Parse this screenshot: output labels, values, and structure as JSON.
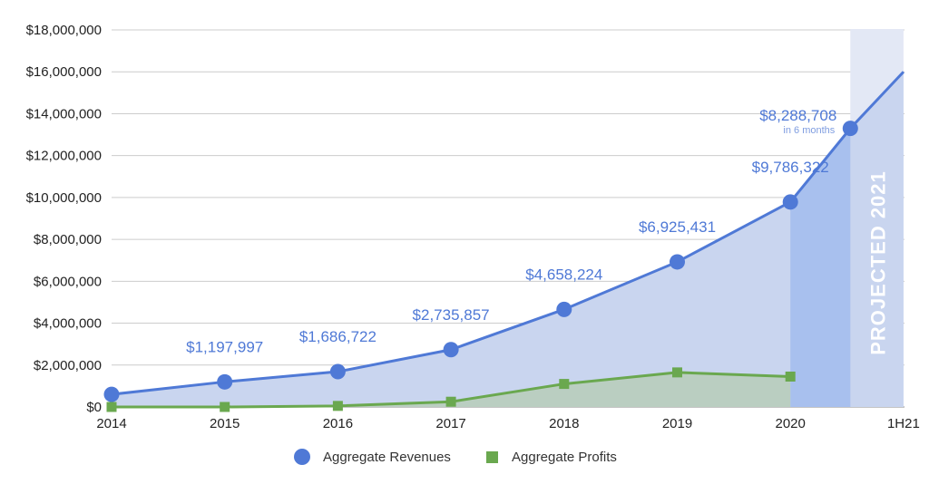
{
  "chart_data": {
    "type": "area",
    "x_categories": [
      "2014",
      "2015",
      "2016",
      "2017",
      "2018",
      "2019",
      "2020",
      "1H21"
    ],
    "ylim": [
      0,
      18000000
    ],
    "y_ticks": [
      "$0",
      "$2,000,000",
      "$4,000,000",
      "$6,000,000",
      "$8,000,000",
      "$10,000,000",
      "$12,000,000",
      "$14,000,000",
      "$16,000,000",
      "$18,000,000"
    ],
    "grid": true,
    "legend_position": "bottom",
    "series": [
      {
        "name": "Aggregate Revenues",
        "color": "#4f79d6",
        "marker": "circle",
        "x": [
          0,
          1,
          2,
          3,
          4,
          5,
          6,
          6.53
        ],
        "values": [
          600000,
          1197997,
          1686722,
          2735857,
          4658224,
          6925431,
          9786322,
          13300000
        ]
      },
      {
        "name": "Aggregate Profits",
        "color": "#6aa84f",
        "marker": "square",
        "x": [
          0,
          1,
          2,
          3,
          4,
          5,
          6
        ],
        "values": [
          0,
          0,
          50000,
          250000,
          1100000,
          1650000,
          1450000
        ]
      }
    ],
    "projection": {
      "label": "PROJECTED 2021",
      "x_start": 6.53,
      "x_end": 7.0,
      "y_end": 16000000
    },
    "half_year_band": {
      "x_start": 6.0,
      "x_end": 6.53
    },
    "data_labels": [
      {
        "text": "$1,197,997",
        "x": 1,
        "y": 1197997
      },
      {
        "text": "$1,686,722",
        "x": 2,
        "y": 1686722
      },
      {
        "text": "$2,735,857",
        "x": 3,
        "y": 2735857
      },
      {
        "text": "$4,658,224",
        "x": 4,
        "y": 4658224
      },
      {
        "text": "$6,925,431",
        "x": 5,
        "y": 6925431
      },
      {
        "text": "$9,786,322",
        "x": 6,
        "y": 9786322
      },
      {
        "text": "$8,288,708",
        "note": "in 6 months",
        "x": 6.53,
        "y": 13300000
      }
    ]
  }
}
